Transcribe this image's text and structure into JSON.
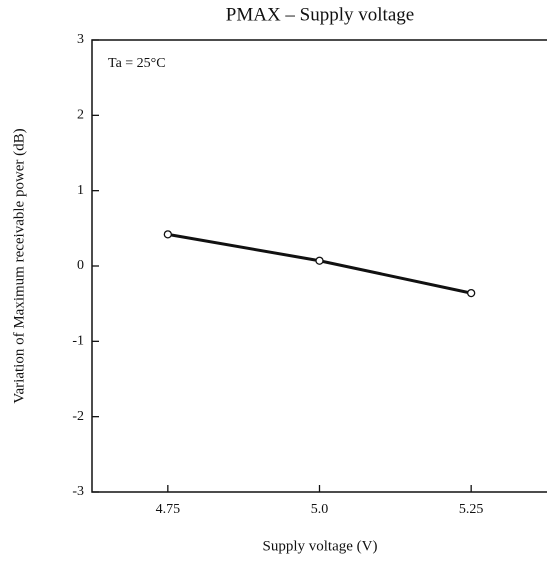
{
  "chart_data": {
    "type": "line",
    "title": "PMAX – Supply voltage",
    "annotation": "Ta = 25°C",
    "x_label": "Supply voltage   (V)",
    "y_label": "Variation of Maximum receivable power   (dB)",
    "x": [
      4.75,
      5.0,
      5.25
    ],
    "series": [
      {
        "color": "#111111",
        "values": [
          0.42,
          0.07,
          -0.36
        ]
      }
    ],
    "xlim": [
      4.625,
      5.375
    ],
    "xticks": [
      4.75,
      {
        "value": 5.0,
        "label": "5.0"
      },
      5.25
    ],
    "ylim": [
      -3,
      3
    ],
    "yticks": [
      -3,
      -2,
      -1,
      0,
      1,
      2,
      3
    ],
    "grid": false
  }
}
